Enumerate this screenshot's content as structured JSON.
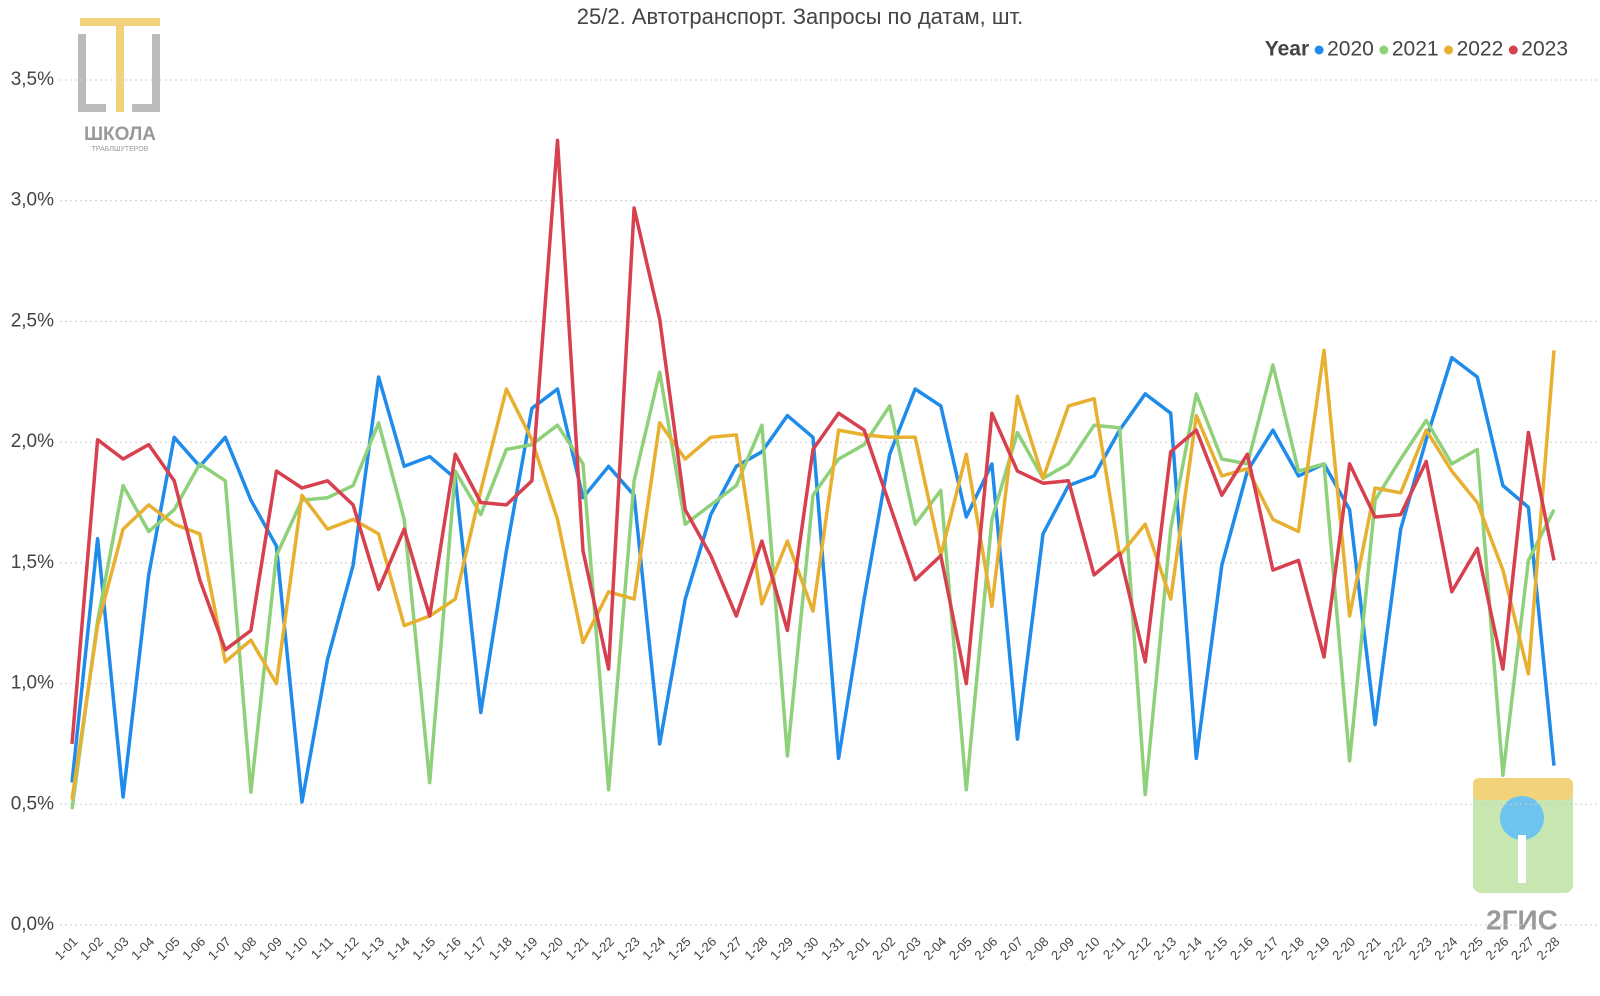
{
  "chart_data": {
    "type": "line",
    "title": "25/2. Автотранспорт. Запросы по датам, шт.",
    "legend_title": "Year",
    "legend_position": "top-right",
    "grid": true,
    "logos": [
      "ШКОЛА",
      "ТРАБЛШУТЕРОВ",
      "2ГИС"
    ],
    "categories": [
      "1-01",
      "1-02",
      "1-03",
      "1-04",
      "1-05",
      "1-06",
      "1-07",
      "1-08",
      "1-09",
      "1-10",
      "1-11",
      "1-12",
      "1-13",
      "1-14",
      "1-15",
      "1-16",
      "1-17",
      "1-18",
      "1-19",
      "1-20",
      "1-21",
      "1-22",
      "1-23",
      "1-24",
      "1-25",
      "1-26",
      "1-27",
      "1-28",
      "1-29",
      "1-30",
      "1-31",
      "2-01",
      "2-02",
      "2-03",
      "2-04",
      "2-05",
      "2-06",
      "2-07",
      "2-08",
      "2-09",
      "2-10",
      "2-11",
      "2-12",
      "2-13",
      "2-14",
      "2-15",
      "2-16",
      "2-17",
      "2-18",
      "2-19",
      "2-20",
      "2-21",
      "2-22",
      "2-23",
      "2-24",
      "2-25",
      "2-26",
      "2-27",
      "2-28"
    ],
    "ylim": [
      0,
      3.5
    ],
    "yticks": [
      {
        "value": 0,
        "label": "0,0%"
      },
      {
        "value": 0.5,
        "label": "0,5%"
      },
      {
        "value": 1,
        "label": "1,0%"
      },
      {
        "value": 1.5,
        "label": "1,5%"
      },
      {
        "value": 2,
        "label": "2,0%"
      },
      {
        "value": 2.5,
        "label": "2,5%"
      },
      {
        "value": 3,
        "label": "3,0%"
      },
      {
        "value": 3.5,
        "label": "3,5%"
      }
    ],
    "series": [
      {
        "name": "2020",
        "color": "#1f8ceb",
        "values": [
          0.59,
          1.6,
          0.53,
          1.45,
          2.02,
          1.9,
          2.02,
          1.76,
          1.57,
          0.51,
          1.1,
          1.49,
          2.27,
          1.9,
          1.94,
          1.85,
          0.88,
          1.55,
          2.14,
          2.22,
          1.77,
          1.9,
          1.78,
          0.75,
          1.35,
          1.7,
          1.9,
          1.96,
          2.11,
          2.02,
          0.69,
          1.35,
          1.95,
          2.22,
          2.15,
          1.69,
          1.91,
          0.77,
          1.62,
          1.82,
          1.86,
          2.05,
          2.2,
          2.12,
          0.69,
          1.49,
          1.88,
          2.05,
          1.86,
          1.91,
          1.72,
          0.83,
          1.64,
          2.01,
          2.35,
          2.27,
          1.82,
          1.73,
          0.66
        ]
      },
      {
        "name": "2021",
        "color": "#8fd17a",
        "values": [
          0.48,
          1.26,
          1.82,
          1.63,
          1.72,
          1.91,
          1.84,
          0.55,
          1.53,
          1.76,
          1.77,
          1.82,
          2.08,
          1.68,
          0.59,
          1.88,
          1.7,
          1.97,
          1.99,
          2.07,
          1.91,
          0.56,
          1.84,
          2.29,
          1.66,
          1.74,
          1.82,
          2.07,
          0.7,
          1.78,
          1.93,
          1.99,
          2.15,
          1.66,
          1.8,
          0.56,
          1.68,
          2.04,
          1.85,
          1.91,
          2.07,
          2.06,
          0.54,
          1.64,
          2.2,
          1.93,
          1.91,
          2.32,
          1.88,
          1.91,
          0.68,
          1.76,
          1.93,
          2.09,
          1.91,
          1.97,
          0.62,
          1.51,
          1.72
        ]
      },
      {
        "name": "2022",
        "color": "#e8b030",
        "values": [
          0.52,
          1.24,
          1.64,
          1.74,
          1.66,
          1.62,
          1.09,
          1.18,
          1.0,
          1.78,
          1.64,
          1.68,
          1.62,
          1.24,
          1.28,
          1.35,
          1.8,
          2.22,
          2.01,
          1.68,
          1.17,
          1.38,
          1.35,
          2.08,
          1.93,
          2.02,
          2.03,
          1.33,
          1.59,
          1.3,
          2.05,
          2.03,
          2.02,
          2.02,
          1.53,
          1.95,
          1.32,
          2.19,
          1.85,
          2.15,
          2.18,
          1.53,
          1.66,
          1.35,
          2.11,
          1.86,
          1.89,
          1.68,
          1.63,
          2.38,
          1.28,
          1.81,
          1.79,
          2.05,
          1.88,
          1.75,
          1.47,
          1.04,
          2.38
        ]
      },
      {
        "name": "2023",
        "color": "#d7404e",
        "values": [
          0.75,
          2.01,
          1.93,
          1.99,
          1.84,
          1.43,
          1.14,
          1.22,
          1.88,
          1.81,
          1.84,
          1.74,
          1.39,
          1.64,
          1.28,
          1.95,
          1.75,
          1.74,
          1.84,
          3.25,
          1.55,
          1.06,
          2.97,
          2.51,
          1.72,
          1.53,
          1.28,
          1.59,
          1.22,
          1.97,
          2.12,
          2.05,
          1.74,
          1.43,
          1.53,
          1.0,
          2.12,
          1.88,
          1.83,
          1.84,
          1.45,
          1.54,
          1.09,
          1.96,
          2.05,
          1.78,
          1.95,
          1.47,
          1.51,
          1.11,
          1.91,
          1.69,
          1.7,
          1.92,
          1.38,
          1.56,
          1.06,
          2.04,
          1.51
        ]
      }
    ]
  }
}
